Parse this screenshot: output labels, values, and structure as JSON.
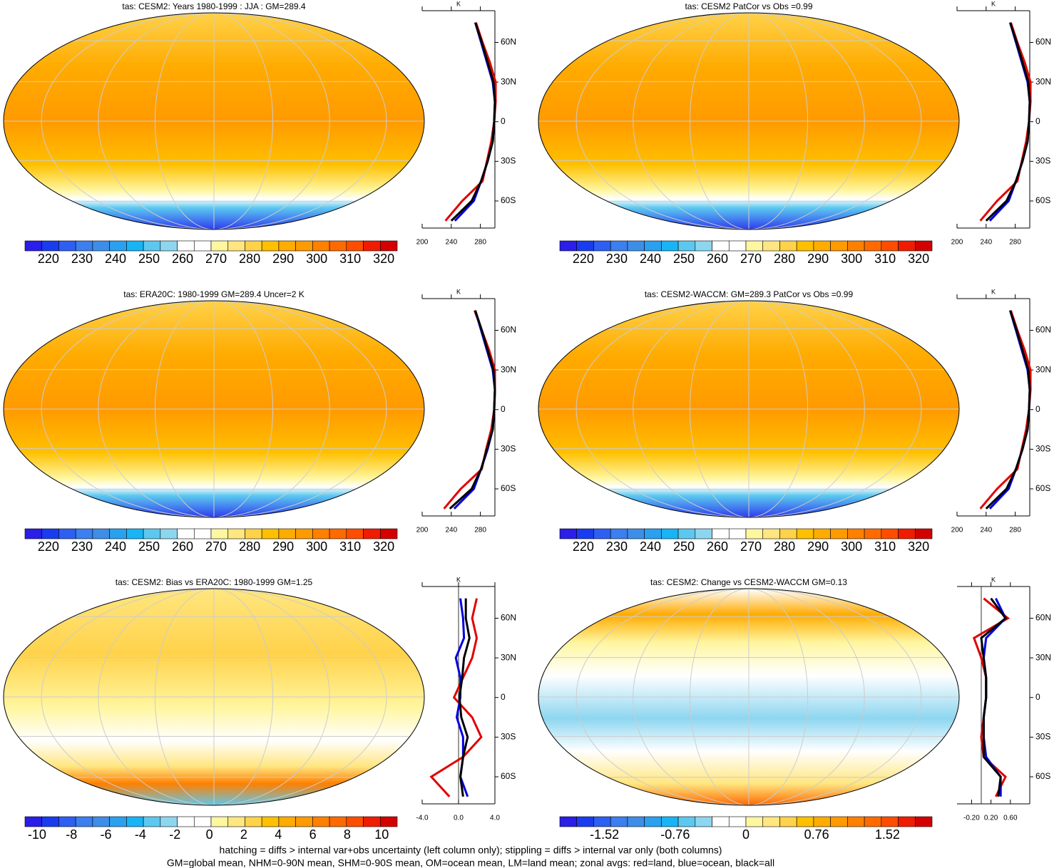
{
  "colorbar_colors": [
    "#2a1ee8",
    "#1a3cf0",
    "#2d5ff2",
    "#3b7ff0",
    "#3d8ee8",
    "#2aa0f0",
    "#17b5f5",
    "#5cc8f0",
    "#8dd6f0",
    "#ffffff",
    "#ffffff",
    "#fff6a0",
    "#ffe680",
    "#ffd24a",
    "#ffc000",
    "#ffab00",
    "#ff9a00",
    "#ff8000",
    "#ff6a00",
    "#ff4d00",
    "#f01c00",
    "#d40000"
  ],
  "panels": [
    {
      "title": "tas: CESM2: Years 1980-1999 : JJA : GM=289.4",
      "colorbar": {
        "lim": [
          213,
          324
        ],
        "ticks": [
          220,
          230,
          240,
          250,
          260,
          270,
          280,
          290,
          300,
          310,
          320
        ]
      },
      "zonal": {
        "unit": "K",
        "lat": [
          -75,
          -60,
          -45,
          -30,
          -15,
          0,
          15,
          30,
          45,
          60,
          75
        ],
        "xlim": [
          200,
          300
        ],
        "xticks": [
          200,
          240,
          280
        ],
        "ylim": [
          -80.5,
          84
        ],
        "yticks": [
          {
            "value": 60,
            "label": "60N"
          },
          {
            "value": 30,
            "label": "30N"
          },
          0,
          {
            "value": -30,
            "label": "30S"
          },
          {
            "value": -60,
            "label": "60S"
          }
        ],
        "series": [
          {
            "color": "#e00000",
            "values": [
              232,
              255,
              283,
              289,
              295,
              299,
              301,
              301,
              293,
              283,
              274
            ]
          },
          {
            "color": "#0000e0",
            "values": [
              245,
              271,
              281,
              290,
              297,
              299,
              300,
              297,
              289,
              281,
              273
            ]
          },
          {
            "color": "#000000",
            "values": [
              240,
              268,
              281,
              290,
              297,
              299,
              300,
              298,
              290,
              282,
              273
            ]
          }
        ]
      }
    },
    {
      "title": "tas: CESM2 PatCor vs Obs =0.99",
      "colorbar": {
        "lim": [
          213,
          324
        ],
        "ticks": [
          220,
          230,
          240,
          250,
          260,
          270,
          280,
          290,
          300,
          310,
          320
        ]
      },
      "zonal": {
        "unit": "K",
        "lat": [
          -75,
          -60,
          -45,
          -30,
          -15,
          0,
          15,
          30,
          45,
          60,
          75
        ],
        "xlim": [
          200,
          300
        ],
        "xticks": [
          200,
          240,
          280
        ],
        "ylim": [
          -80.5,
          84
        ],
        "yticks": [
          {
            "value": 60,
            "label": "60N"
          },
          {
            "value": 30,
            "label": "30N"
          },
          0,
          {
            "value": -30,
            "label": "30S"
          },
          {
            "value": -60,
            "label": "60S"
          }
        ],
        "series": [
          {
            "color": "#e00000",
            "values": [
              232,
              255,
              283,
              289,
              295,
              299,
              301,
              301,
              293,
              283,
              274
            ]
          },
          {
            "color": "#0000e0",
            "values": [
              245,
              271,
              281,
              290,
              297,
              299,
              300,
              297,
              289,
              281,
              273
            ]
          },
          {
            "color": "#000000",
            "values": [
              240,
              268,
              281,
              290,
              297,
              299,
              300,
              298,
              290,
              282,
              273
            ]
          }
        ]
      }
    },
    {
      "title": "tas: ERA20C: 1980-1999 GM=289.4 Uncer=2 K",
      "colorbar": {
        "lim": [
          213,
          324
        ],
        "ticks": [
          220,
          230,
          240,
          250,
          260,
          270,
          280,
          290,
          300,
          310,
          320
        ]
      },
      "zonal": {
        "unit": "K",
        "lat": [
          -75,
          -60,
          -45,
          -30,
          -15,
          0,
          15,
          30,
          45,
          60,
          75
        ],
        "xlim": [
          200,
          300
        ],
        "xticks": [
          200,
          240,
          280
        ],
        "ylim": [
          -80.5,
          84
        ],
        "yticks": [
          {
            "value": 60,
            "label": "60N"
          },
          {
            "value": 30,
            "label": "30N"
          },
          0,
          {
            "value": -30,
            "label": "30S"
          },
          {
            "value": -60,
            "label": "60S"
          }
        ],
        "series": [
          {
            "color": "#e00000",
            "values": [
              230,
              253,
              282,
              288,
              295,
              299,
              300,
              300,
              292,
              282,
              272
            ]
          },
          {
            "color": "#0000e0",
            "values": [
              244,
              271,
              281,
              290,
              297,
              299,
              300,
              297,
              289,
              281,
              273
            ]
          },
          {
            "color": "#000000",
            "values": [
              238,
              268,
              281,
              289,
              297,
              299,
              300,
              298,
              290,
              282,
              273
            ]
          }
        ]
      }
    },
    {
      "title": "tas: CESM2-WACCM: GM=289.3 PatCor vs Obs =0.99",
      "colorbar": {
        "lim": [
          213,
          324
        ],
        "ticks": [
          220,
          230,
          240,
          250,
          260,
          270,
          280,
          290,
          300,
          310,
          320
        ]
      },
      "zonal": {
        "unit": "K",
        "lat": [
          -75,
          -60,
          -45,
          -30,
          -15,
          0,
          15,
          30,
          45,
          60,
          75
        ],
        "xlim": [
          200,
          300
        ],
        "xticks": [
          200,
          240,
          280
        ],
        "ylim": [
          -80.5,
          84
        ],
        "yticks": [
          {
            "value": 60,
            "label": "60N"
          },
          {
            "value": 30,
            "label": "30N"
          },
          0,
          {
            "value": -30,
            "label": "30S"
          },
          {
            "value": -60,
            "label": "60S"
          }
        ],
        "series": [
          {
            "color": "#e00000",
            "values": [
              232,
              255,
              283,
              289,
              295,
              299,
              301,
              301,
              293,
              283,
              274
            ]
          },
          {
            "color": "#0000e0",
            "values": [
              245,
              271,
              281,
              290,
              297,
              299,
              300,
              297,
              289,
              281,
              273
            ]
          },
          {
            "color": "#000000",
            "values": [
              240,
              268,
              281,
              290,
              297,
              299,
              300,
              298,
              290,
              282,
              273
            ]
          }
        ]
      }
    },
    {
      "title": "tas: CESM2: Bias vs ERA20C: 1980-1999 GM=1.25",
      "colorbar": {
        "lim": [
          -10.7,
          10.9
        ],
        "ticks": [
          -10,
          -8,
          -6,
          -4,
          -2,
          0,
          2,
          4,
          6,
          8,
          10
        ]
      },
      "zonal": {
        "unit": "K",
        "lat": [
          -75,
          -60,
          -45,
          -30,
          -15,
          0,
          15,
          30,
          45,
          60,
          75
        ],
        "xlim": [
          -4,
          4
        ],
        "xticks": [
          {
            "value": -4,
            "label": "-4.0"
          },
          {
            "value": 0,
            "label": "0.0"
          },
          {
            "value": 4,
            "label": "4.0"
          }
        ],
        "ylim": [
          -80.5,
          84
        ],
        "yticks": [
          {
            "value": 60,
            "label": "60N"
          },
          {
            "value": 30,
            "label": "30N"
          },
          0,
          {
            "value": -30,
            "label": "30S"
          },
          {
            "value": -60,
            "label": "60S"
          }
        ],
        "series": [
          {
            "color": "#e00000",
            "values": [
              -1,
              -3,
              0.5,
              2.5,
              1.5,
              -0.5,
              0.5,
              1.5,
              2,
              1.5,
              2
            ]
          },
          {
            "color": "#0000e0",
            "values": [
              1,
              0.2,
              0.5,
              0.5,
              -0.2,
              0.2,
              0.2,
              -0.3,
              0.6,
              0.5,
              0.2
            ]
          },
          {
            "color": "#000000",
            "values": [
              0.5,
              0.2,
              0.5,
              1,
              0.3,
              0.1,
              0.4,
              0.6,
              1.2,
              0.8,
              0.8
            ]
          }
        ]
      }
    },
    {
      "title": "tas: CESM2: Change vs CESM2-WACCM GM=0.13",
      "colorbar": {
        "lim": [
          -2,
          2
        ],
        "ticks": [
          -1.52,
          -0.76,
          0,
          0.76,
          1.52
        ]
      },
      "zonal": {
        "unit": "K",
        "lat": [
          -75,
          -60,
          -45,
          -30,
          -15,
          0,
          15,
          30,
          45,
          60,
          75
        ],
        "xlim": [
          -0.5,
          1
        ],
        "xticks": [
          {
            "value": -0.2,
            "label": "-0.20"
          },
          {
            "value": 0.2,
            "label": "0.20"
          },
          {
            "value": 0.6,
            "label": "0.60"
          }
        ],
        "ylim": [
          -80.5,
          84
        ],
        "yticks": [
          {
            "value": 60,
            "label": "60N"
          },
          {
            "value": 30,
            "label": "30N"
          },
          0,
          {
            "value": -30,
            "label": "30S"
          },
          {
            "value": -60,
            "label": "60S"
          }
        ],
        "series": [
          {
            "color": "#e00000",
            "values": [
              0.3,
              0.5,
              0.05,
              0,
              0.05,
              0.1,
              0.1,
              0,
              -0.15,
              0.55,
              0.05
            ]
          },
          {
            "color": "#0000e0",
            "values": [
              0.4,
              0.4,
              0.1,
              0.05,
              0.05,
              0.1,
              0.1,
              0.05,
              0.1,
              0.5,
              0.3
            ]
          },
          {
            "color": "#000000",
            "values": [
              0.35,
              0.4,
              0.05,
              0.05,
              0.05,
              0.1,
              0.1,
              0.05,
              0,
              0.5,
              0.2
            ]
          }
        ]
      }
    }
  ],
  "footer": [
    "hatching = diffs > internal var+obs uncertainty (left column only); stippling = diffs > internal var only (both columns)",
    "GM=global mean, NHM=0-90N mean, SHM=0-90S mean, OM=ocean mean, LM=land mean; zonal avgs: red=land, blue=ocean, black=all"
  ]
}
